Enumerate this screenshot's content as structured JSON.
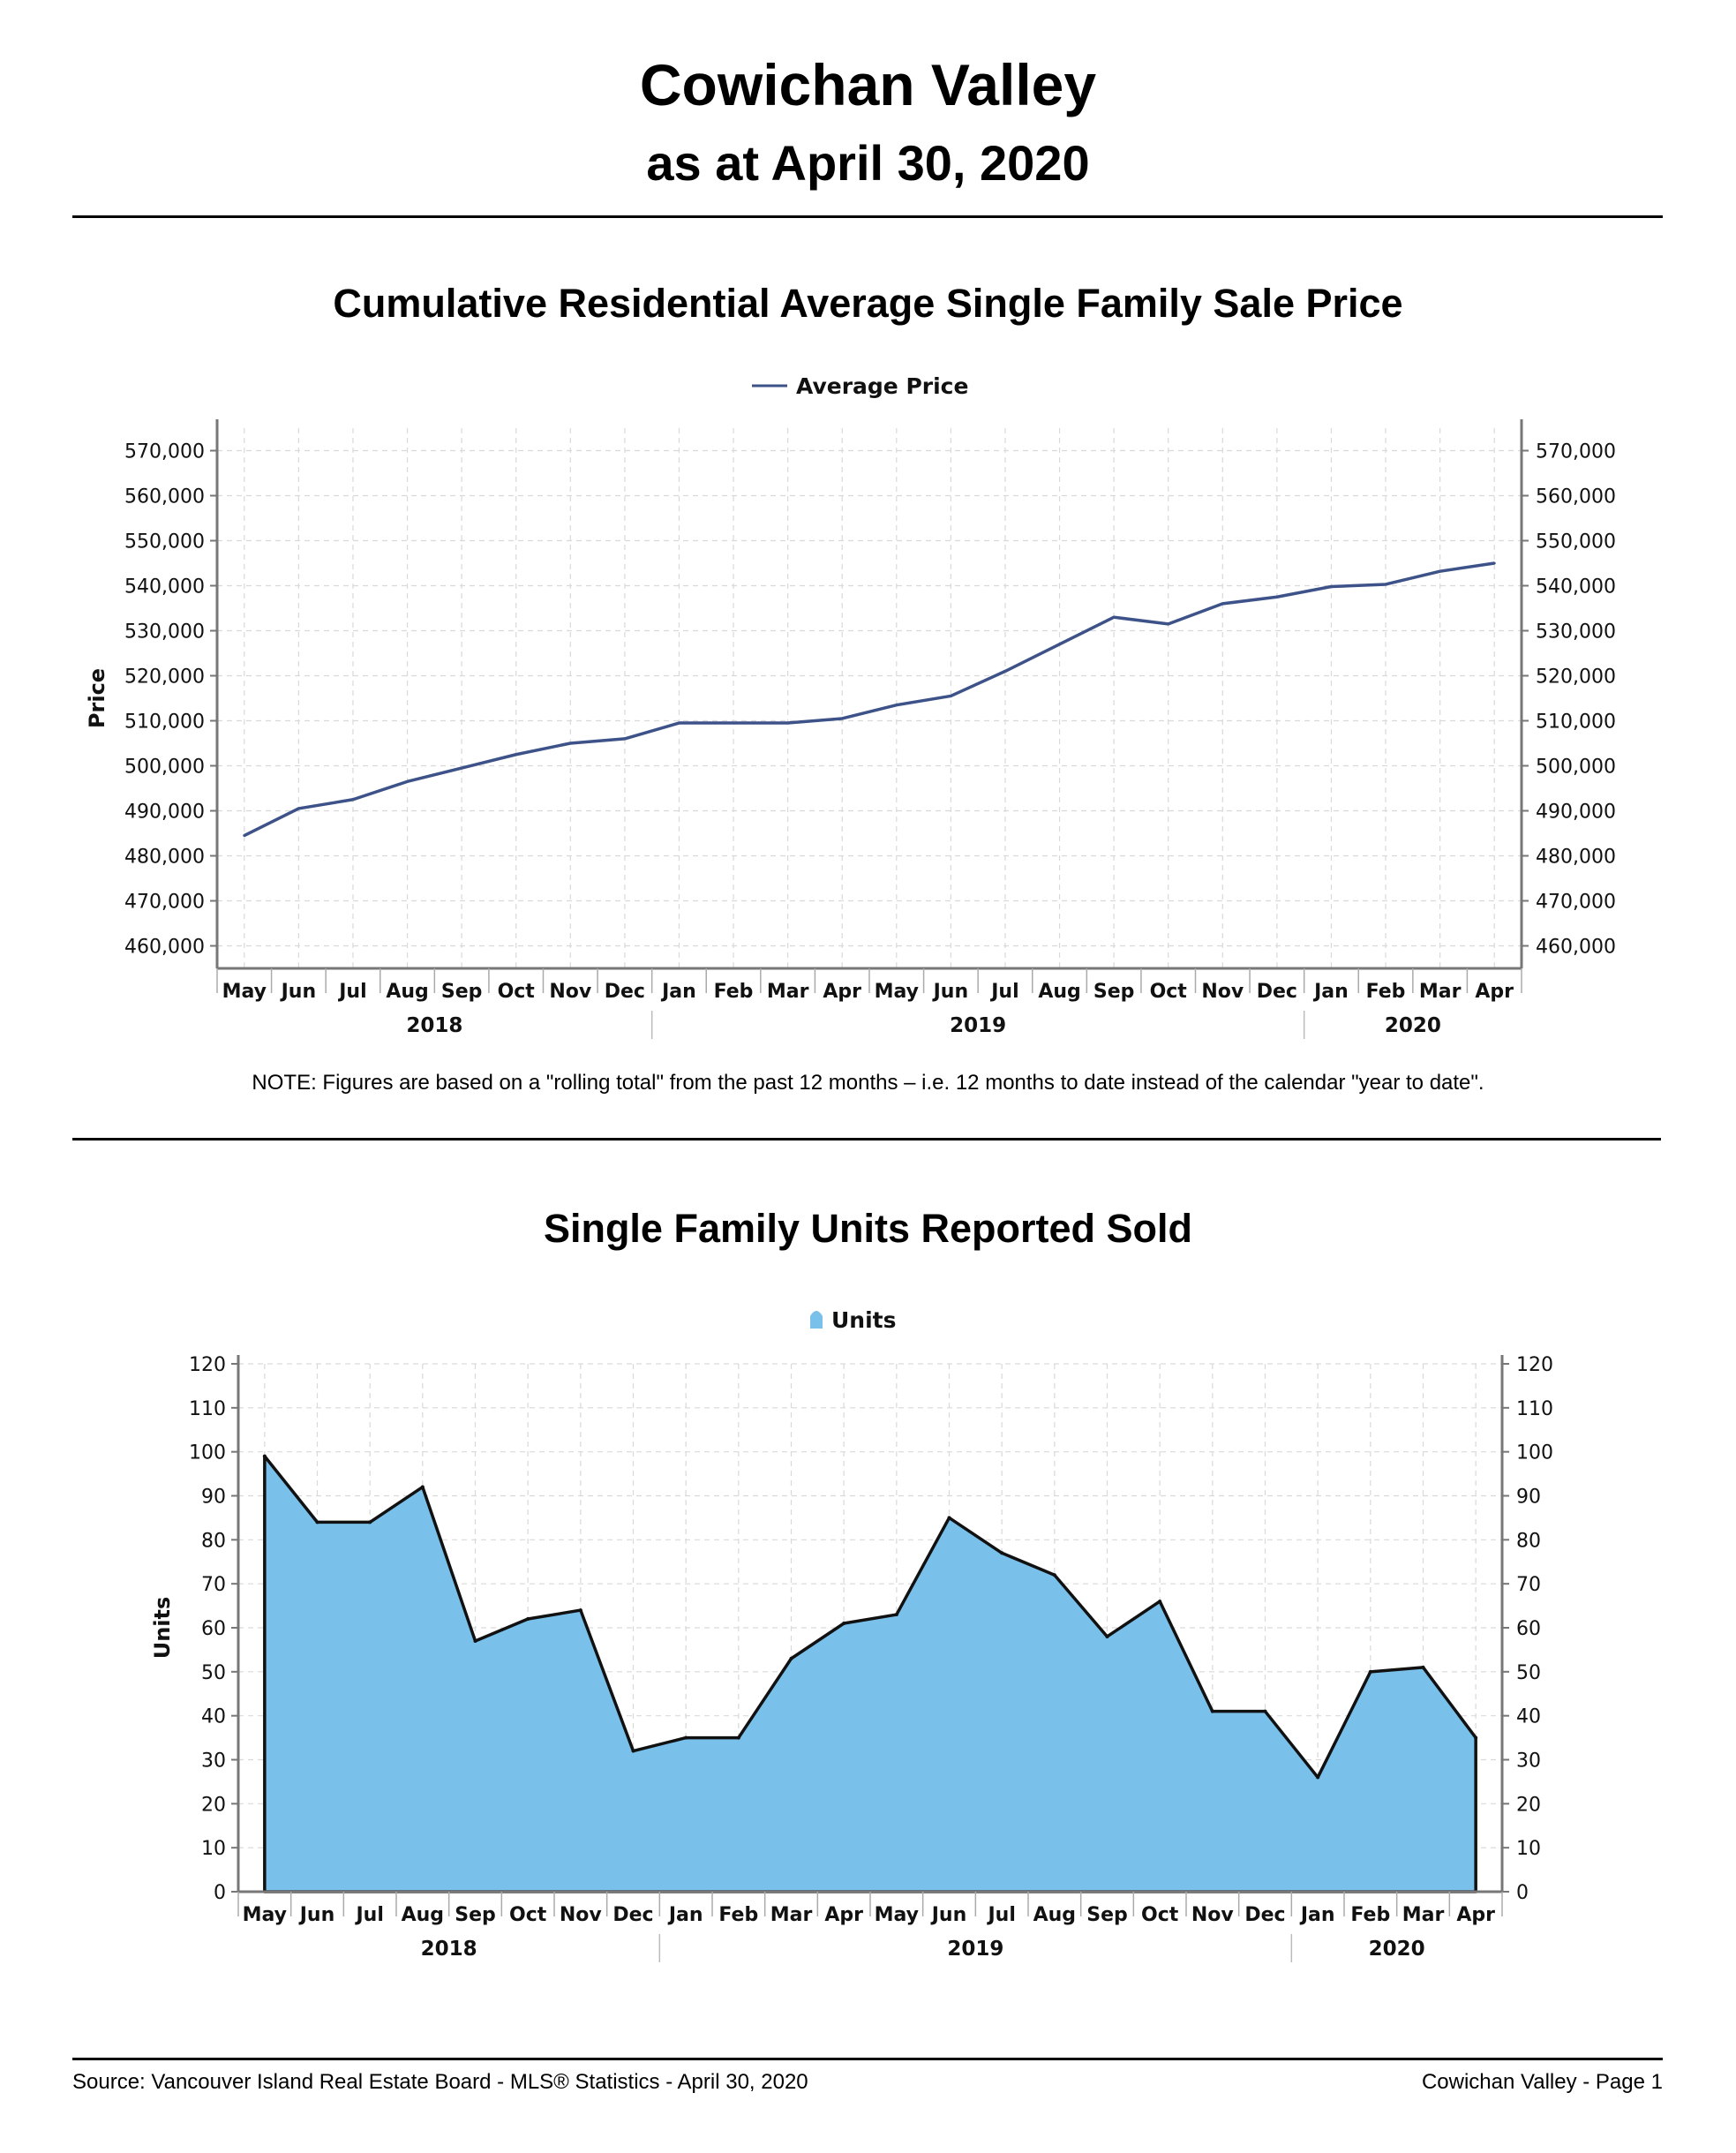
{
  "header": {
    "title": "Cowichan Valley",
    "subtitle": "as at April 30, 2020"
  },
  "note": "NOTE:  Figures are based on a \"rolling total\" from the past 12 months – i.e. 12 months to date instead of the calendar \"year to date\".",
  "footer": {
    "source": "Source: Vancouver Island Real Estate Board - MLS® Statistics - April 30, 2020",
    "page": "Cowichan Valley - Page 1"
  },
  "chart_data": [
    {
      "type": "line",
      "title": "Cumulative Residential Average Single Family Sale Price",
      "legend": "Average Price",
      "ylabel": "Price",
      "xlabel": "",
      "ylim": [
        455000,
        575000
      ],
      "yticks": [
        460000,
        470000,
        480000,
        490000,
        500000,
        510000,
        520000,
        530000,
        540000,
        550000,
        560000,
        570000
      ],
      "ytick_labels": [
        "460,000",
        "470,000",
        "480,000",
        "490,000",
        "500,000",
        "510,000",
        "520,000",
        "530,000",
        "540,000",
        "550,000",
        "560,000",
        "570,000"
      ],
      "categories": [
        "May",
        "Jun",
        "Jul",
        "Aug",
        "Sep",
        "Oct",
        "Nov",
        "Dec",
        "Jan",
        "Feb",
        "Mar",
        "Apr",
        "May",
        "Jun",
        "Jul",
        "Aug",
        "Sep",
        "Oct",
        "Nov",
        "Dec",
        "Jan",
        "Feb",
        "Mar",
        "Apr"
      ],
      "years": [
        {
          "label": "2018",
          "start": 0,
          "end": 7
        },
        {
          "label": "2019",
          "start": 8,
          "end": 19
        },
        {
          "label": "2020",
          "start": 20,
          "end": 23
        }
      ],
      "values": [
        484500,
        490500,
        492500,
        496500,
        499500,
        502500,
        505000,
        506000,
        509500,
        509500,
        509500,
        510500,
        513500,
        515500,
        521000,
        527000,
        533000,
        531500,
        536000,
        537500,
        539800,
        540300,
        543200,
        545000
      ],
      "line_color": "#3d5288",
      "grid": true
    },
    {
      "type": "area",
      "title": "Single Family Units Reported Sold",
      "legend": "Units",
      "ylabel": "Units",
      "xlabel": "",
      "ylim": [
        0,
        120
      ],
      "yticks": [
        0,
        10,
        20,
        30,
        40,
        50,
        60,
        70,
        80,
        90,
        100,
        110,
        120
      ],
      "ytick_labels": [
        "0",
        "10",
        "20",
        "30",
        "40",
        "50",
        "60",
        "70",
        "80",
        "90",
        "100",
        "110",
        "120"
      ],
      "categories": [
        "May",
        "Jun",
        "Jul",
        "Aug",
        "Sep",
        "Oct",
        "Nov",
        "Dec",
        "Jan",
        "Feb",
        "Mar",
        "Apr",
        "May",
        "Jun",
        "Jul",
        "Aug",
        "Sep",
        "Oct",
        "Nov",
        "Dec",
        "Jan",
        "Feb",
        "Mar",
        "Apr"
      ],
      "years": [
        {
          "label": "2018",
          "start": 0,
          "end": 7
        },
        {
          "label": "2019",
          "start": 8,
          "end": 19
        },
        {
          "label": "2020",
          "start": 20,
          "end": 23
        }
      ],
      "values": [
        99,
        84,
        84,
        92,
        57,
        62,
        64,
        32,
        35,
        35,
        53,
        61,
        63,
        85,
        77,
        72,
        58,
        66,
        41,
        41,
        26,
        50,
        51,
        35
      ],
      "fill_color": "#79c0ea",
      "grid": true
    }
  ]
}
